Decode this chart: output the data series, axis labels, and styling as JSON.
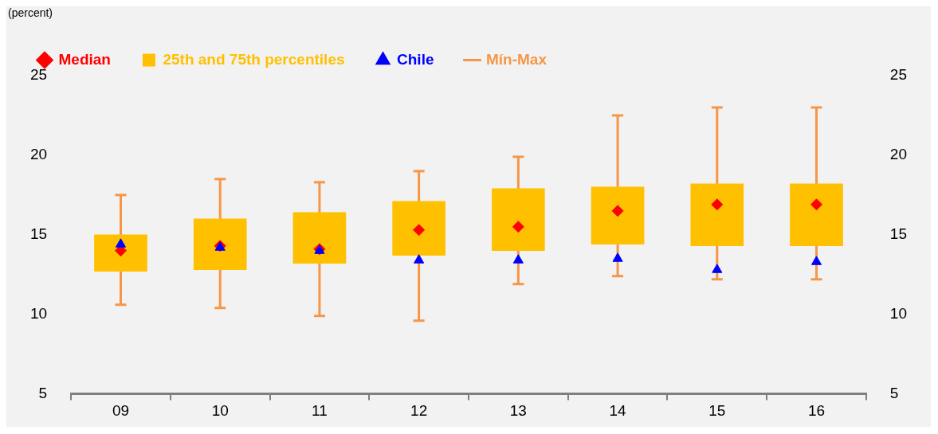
{
  "chart_data": {
    "type": "box",
    "ylabel": "(percent)",
    "categories": [
      "09",
      "10",
      "11",
      "12",
      "13",
      "14",
      "15",
      "16"
    ],
    "ylim": [
      5,
      25
    ],
    "yticks": [
      5,
      10,
      15,
      20,
      25
    ],
    "y2lim": [
      5,
      25
    ],
    "y2ticks": [
      5,
      10,
      15,
      20,
      25
    ],
    "grid": false,
    "legend": "top",
    "annotations": [
      "Mín-Max"
    ],
    "series": [
      {
        "type": "scatter",
        "name": "Median",
        "color": "#ff0000",
        "marker": "diamond",
        "x": [
          "09",
          "10",
          "11",
          "12",
          "13",
          "14",
          "15",
          "16"
        ],
        "values": [
          14.0,
          14.3,
          14.1,
          15.3,
          15.5,
          16.5,
          16.9,
          16.9
        ]
      },
      {
        "type": "box",
        "name": "25th and 75th percentiles",
        "color": "#ffc000",
        "boxes": [
          {
            "low": 10.6,
            "q1": 12.7,
            "q3": 15.0,
            "high": 17.5
          },
          {
            "low": 10.4,
            "q1": 12.8,
            "q3": 16.0,
            "high": 18.5
          },
          {
            "low": 9.9,
            "q1": 13.2,
            "q3": 16.4,
            "high": 18.3
          },
          {
            "low": 9.6,
            "q1": 13.7,
            "q3": 17.1,
            "high": 19.0
          },
          {
            "low": 11.9,
            "q1": 14.0,
            "q3": 17.9,
            "high": 19.9
          },
          {
            "low": 12.4,
            "q1": 14.4,
            "q3": 18.0,
            "high": 22.5
          },
          {
            "low": 12.2,
            "q1": 14.3,
            "q3": 18.2,
            "high": 23.0
          },
          {
            "low": 12.2,
            "q1": 14.3,
            "q3": 18.2,
            "high": 23.0
          }
        ]
      },
      {
        "type": "scatter",
        "name": "Chile",
        "color": "#0000ff",
        "marker": "triangle",
        "x": [
          "09",
          "10",
          "11",
          "12",
          "13",
          "14",
          "15",
          "16"
        ],
        "values": [
          14.4,
          14.2,
          14.0,
          13.4,
          13.4,
          13.5,
          12.8,
          13.3
        ]
      }
    ]
  }
}
